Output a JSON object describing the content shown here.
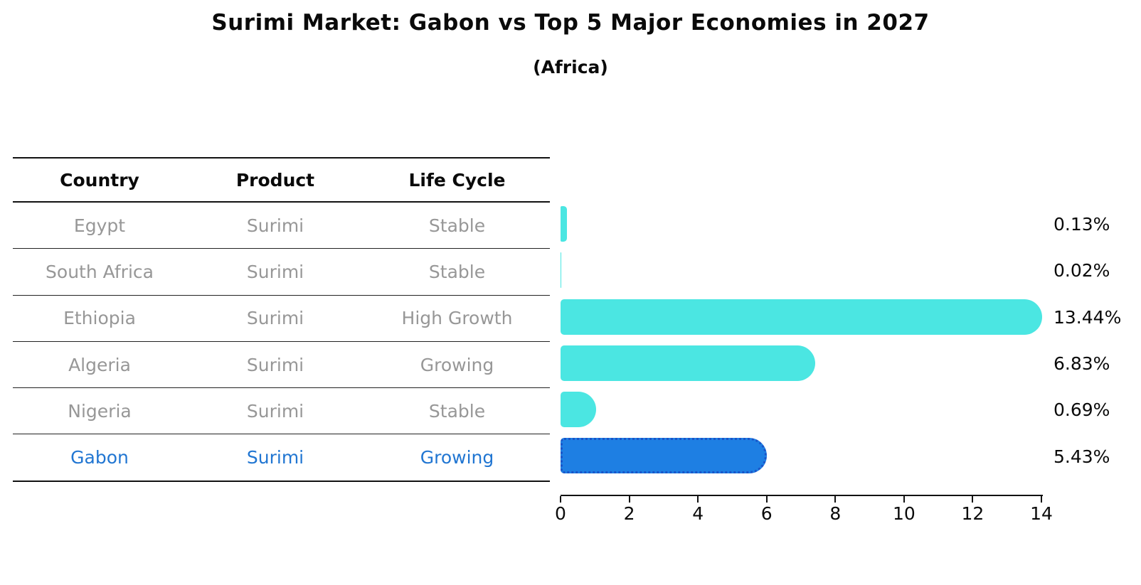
{
  "title": "Surimi Market: Gabon vs Top 5 Major Economies in 2027",
  "subtitle": "(Africa)",
  "table": {
    "headers": {
      "country": "Country",
      "product": "Product",
      "life_cycle": "Life Cycle"
    }
  },
  "rows": [
    {
      "country": "Egypt",
      "product": "Surimi",
      "life_cycle": "Stable",
      "value": 0.13,
      "label": "0.13%",
      "highlight": false
    },
    {
      "country": "South Africa",
      "product": "Surimi",
      "life_cycle": "Stable",
      "value": 0.02,
      "label": "0.02%",
      "highlight": false
    },
    {
      "country": "Ethiopia",
      "product": "Surimi",
      "life_cycle": "High Growth",
      "value": 13.44,
      "label": "13.44%",
      "highlight": false
    },
    {
      "country": "Algeria",
      "product": "Surimi",
      "life_cycle": "Growing",
      "value": 6.83,
      "label": "6.83%",
      "highlight": false
    },
    {
      "country": "Nigeria",
      "product": "Surimi",
      "life_cycle": "Stable",
      "value": 0.69,
      "label": "0.69%",
      "highlight": false
    },
    {
      "country": "Gabon",
      "product": "Surimi",
      "life_cycle": "Growing",
      "value": 5.43,
      "label": "5.43%",
      "highlight": true
    }
  ],
  "chart_data": {
    "type": "bar",
    "orientation": "horizontal",
    "title": "Surimi Market: Gabon vs Top 5 Major Economies in 2027",
    "subtitle": "(Africa)",
    "categories": [
      "Egypt",
      "South Africa",
      "Ethiopia",
      "Algeria",
      "Nigeria",
      "Gabon"
    ],
    "values": [
      0.13,
      0.02,
      13.44,
      6.83,
      0.69,
      5.43
    ],
    "value_labels": [
      "0.13%",
      "0.02%",
      "13.44%",
      "6.83%",
      "0.69%",
      "5.43%"
    ],
    "xlabel": "",
    "ylabel": "",
    "xlim": [
      0,
      14
    ],
    "xticks": [
      0,
      2,
      4,
      6,
      8,
      10,
      12,
      14
    ],
    "grid": false,
    "legend": false,
    "colors": {
      "bar": "#4be6e2",
      "highlight_bar": "#1e7fe3",
      "highlight_border": "#1a54c8",
      "highlight_text": "#2176d2",
      "row_text": "#979797",
      "axis": "#111111"
    }
  }
}
